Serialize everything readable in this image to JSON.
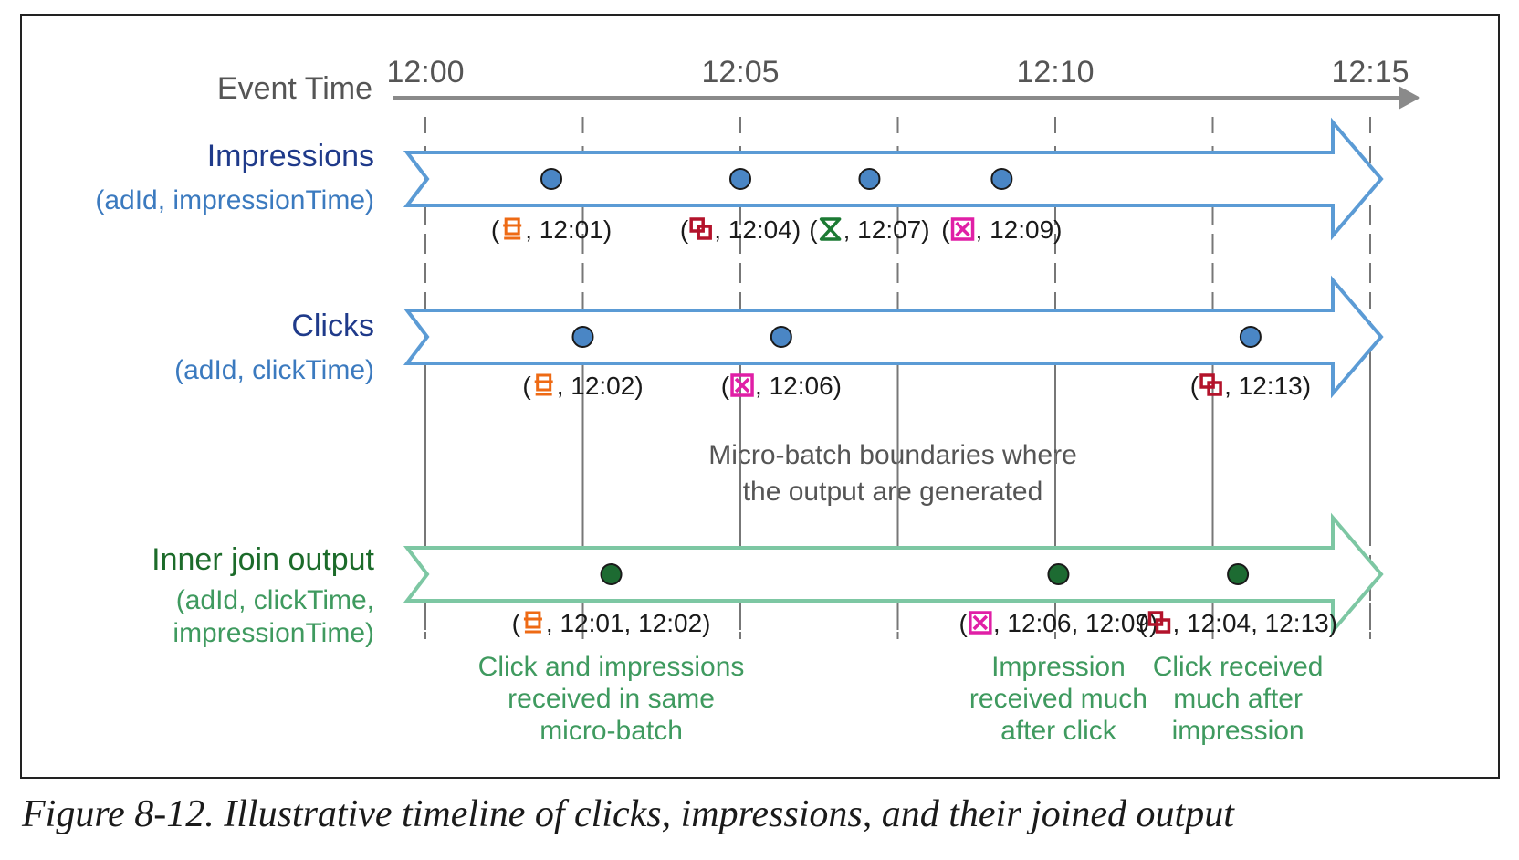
{
  "axis": {
    "label": "Event Time",
    "ticks": [
      "12:00",
      "12:05",
      "12:10",
      "12:15"
    ]
  },
  "lanes": {
    "impressions": {
      "title": "Impressions",
      "subtitle": "(adId, impressionTime)",
      "events": [
        {
          "minute": 2.0,
          "time": "12:01",
          "icon": "monitor-icon",
          "color": "#ee6a14"
        },
        {
          "minute": 5.0,
          "time": "12:04",
          "icon": "overlapping-squares-icon",
          "color": "#b3132b"
        },
        {
          "minute": 7.05,
          "time": "12:07",
          "icon": "hourglass-icon",
          "color": "#1c7a33"
        },
        {
          "minute": 9.15,
          "time": "12:09",
          "icon": "crossed-box-icon",
          "color": "#e01fa6"
        }
      ]
    },
    "clicks": {
      "title": "Clicks",
      "subtitle": "(adId, clickTime)",
      "events": [
        {
          "minute": 2.5,
          "time": "12:02",
          "icon": "monitor-icon",
          "color": "#ee6a14"
        },
        {
          "minute": 5.65,
          "time": "12:06",
          "icon": "crossed-box-icon",
          "color": "#e01fa6"
        },
        {
          "minute": 13.1,
          "time": "12:13",
          "icon": "overlapping-squares-icon",
          "color": "#b3132b"
        }
      ]
    },
    "output": {
      "title": "Inner join output",
      "subtitle_line1": "(adId, clickTime,",
      "subtitle_line2": "impressionTime)",
      "events": [
        {
          "minute": 2.95,
          "time": "12:01, 12:02",
          "icon": "monitor-icon",
          "color": "#ee6a14",
          "note": [
            "Click and impressions",
            "received in same",
            "micro-batch"
          ]
        },
        {
          "minute": 10.05,
          "time": "12:06, 12:09",
          "icon": "crossed-box-icon",
          "color": "#e01fa6",
          "note": [
            "Impression",
            "received much",
            "after click"
          ]
        },
        {
          "minute": 12.9,
          "time": "12:04, 12:13",
          "icon": "overlapping-squares-icon",
          "color": "#b3132b",
          "note": [
            "Click received",
            "much after",
            "impression"
          ]
        }
      ]
    }
  },
  "micro_batch_note": [
    "Micro-batch boundaries where",
    "the output are generated"
  ],
  "caption": "Figure 8-12. Illustrative timeline of clicks, impressions, and their joined output",
  "colors": {
    "blue_arrow": "#5b9bd5",
    "green_arrow": "#7dc7a3",
    "blue_dot": "#4a86c5",
    "green_dot": "#1d6b32",
    "dark_blue_title": "#1f3a8a",
    "blue_subtitle": "#3b7abf",
    "dark_green_title": "#1c6b2a",
    "green_text": "#3f9a5f",
    "gray": "#555555"
  }
}
